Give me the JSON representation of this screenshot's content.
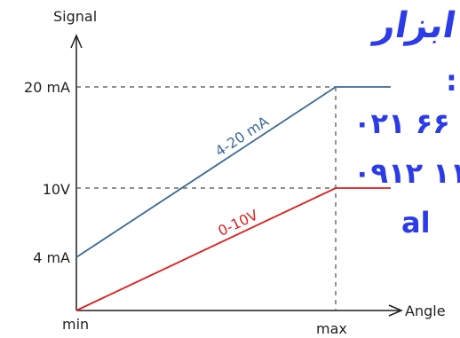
{
  "overlay": {
    "lines": [
      "ابزار",
      ":",
      "۰۲۱ ۶۶",
      "۰۹۱۲ ۱۱",
      "al"
    ],
    "color": "#2b3be8",
    "accent": "#e0245e"
  },
  "chart_data": {
    "type": "line",
    "xlabel": "Angle",
    "ylabel": "Signal",
    "x_ticks": [
      "min",
      "max"
    ],
    "y_ticks": [
      "20 mA",
      "10V",
      "4 mA"
    ],
    "x": [
      "min",
      "max"
    ],
    "ylim": [
      0,
      20
    ],
    "grid": false,
    "series": [
      {
        "name": "4-20 mA",
        "color": "#3d6a99",
        "values": [
          4,
          20
        ],
        "plateau": 20
      },
      {
        "name": "0-10V",
        "color": "#e01b1b",
        "values": [
          0,
          10
        ],
        "plateau": 10
      }
    ]
  }
}
